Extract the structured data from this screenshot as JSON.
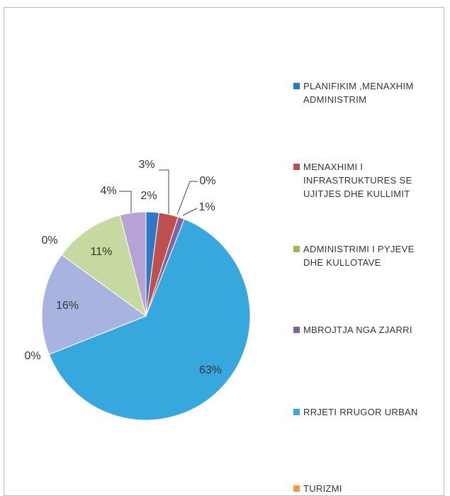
{
  "chart_data": {
    "type": "pie",
    "categories": [
      "PLANIFIKIM ,MENAXHIM ADMINISTRIM",
      "MENAXHIMI I INFRASTRUKTURES SE UJITJES DHE KULLIMIT",
      "ADMINISTRIMI I PYJEVE DHE KULLOTAVE",
      "MBROJTJA NGA ZJARRI",
      "RRJETI RRUGOR URBAN",
      "TURIZMI",
      null,
      null,
      null,
      null
    ],
    "values": [
      2,
      3,
      0,
      1,
      63,
      0,
      16,
      0,
      11,
      4
    ],
    "value_labels": [
      "2%",
      "3%",
      "0%",
      "1%",
      "63%",
      "0%",
      "16%",
      "0%",
      "11%",
      "4%"
    ],
    "colors": [
      "#2f78c4",
      "#c0504d",
      "#9bbb59",
      "#8064a2",
      "#36a8de",
      "#f79646",
      "#a9b3e0",
      "#d6a9a8",
      "#c5d9a0",
      "#b7a3d3"
    ],
    "legend": "right"
  }
}
